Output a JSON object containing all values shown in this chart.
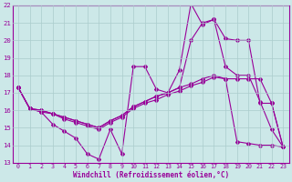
{
  "background_color": "#cce8e8",
  "grid_color": "#aacccc",
  "line_color": "#990099",
  "xlabel": "Windchill (Refroidissement éolien,°C)",
  "xlim": [
    -0.5,
    23.5
  ],
  "ylim": [
    13,
    22
  ],
  "yticks": [
    13,
    14,
    15,
    16,
    17,
    18,
    19,
    20,
    21,
    22
  ],
  "xticks": [
    0,
    1,
    2,
    3,
    4,
    5,
    6,
    7,
    8,
    9,
    10,
    11,
    12,
    13,
    14,
    15,
    16,
    17,
    18,
    19,
    20,
    21,
    22,
    23
  ],
  "series1_x": [
    0,
    1,
    2,
    3,
    4,
    5,
    6,
    7,
    8,
    9,
    10,
    11,
    12,
    13,
    14,
    15,
    16,
    17,
    18,
    19,
    20,
    21,
    22,
    23
  ],
  "series1_y": [
    17.3,
    16.1,
    15.9,
    15.2,
    14.8,
    14.4,
    13.5,
    13.2,
    14.9,
    13.5,
    18.5,
    18.5,
    17.2,
    17.0,
    18.3,
    22.1,
    20.9,
    21.2,
    18.5,
    18.0,
    18.0,
    16.5,
    14.9,
    13.9
  ],
  "series2_x": [
    0,
    1,
    2,
    3,
    4,
    5,
    6,
    7,
    8,
    9,
    10,
    11,
    12,
    13,
    14,
    15,
    16,
    17,
    18,
    19,
    20,
    21,
    22,
    23
  ],
  "series2_y": [
    17.3,
    16.1,
    15.9,
    15.8,
    15.6,
    15.4,
    15.2,
    15.0,
    15.4,
    15.7,
    16.2,
    16.5,
    16.8,
    17.0,
    17.3,
    20.0,
    21.0,
    21.2,
    20.1,
    20.0,
    20.0,
    16.4,
    16.4,
    13.9
  ],
  "series3_x": [
    0,
    1,
    2,
    3,
    4,
    5,
    6,
    7,
    8,
    9,
    10,
    11,
    12,
    13,
    14,
    15,
    16,
    17,
    18,
    19,
    20,
    21,
    22,
    23
  ],
  "series3_y": [
    17.3,
    16.1,
    16.0,
    15.8,
    15.5,
    15.3,
    15.1,
    14.9,
    15.3,
    15.6,
    16.1,
    16.4,
    16.6,
    16.9,
    17.1,
    17.4,
    17.6,
    17.9,
    17.8,
    17.8,
    17.8,
    17.8,
    16.4,
    13.9
  ],
  "series4_x": [
    0,
    1,
    2,
    3,
    4,
    5,
    6,
    7,
    8,
    9,
    10,
    11,
    12,
    13,
    14,
    15,
    16,
    17,
    18,
    19,
    20,
    21,
    22,
    23
  ],
  "series4_y": [
    17.3,
    16.1,
    16.0,
    15.8,
    15.6,
    15.4,
    15.2,
    15.0,
    15.4,
    15.7,
    16.2,
    16.5,
    16.8,
    17.0,
    17.3,
    17.5,
    17.8,
    18.0,
    17.8,
    14.2,
    14.1,
    14.0,
    14.0,
    13.9
  ]
}
